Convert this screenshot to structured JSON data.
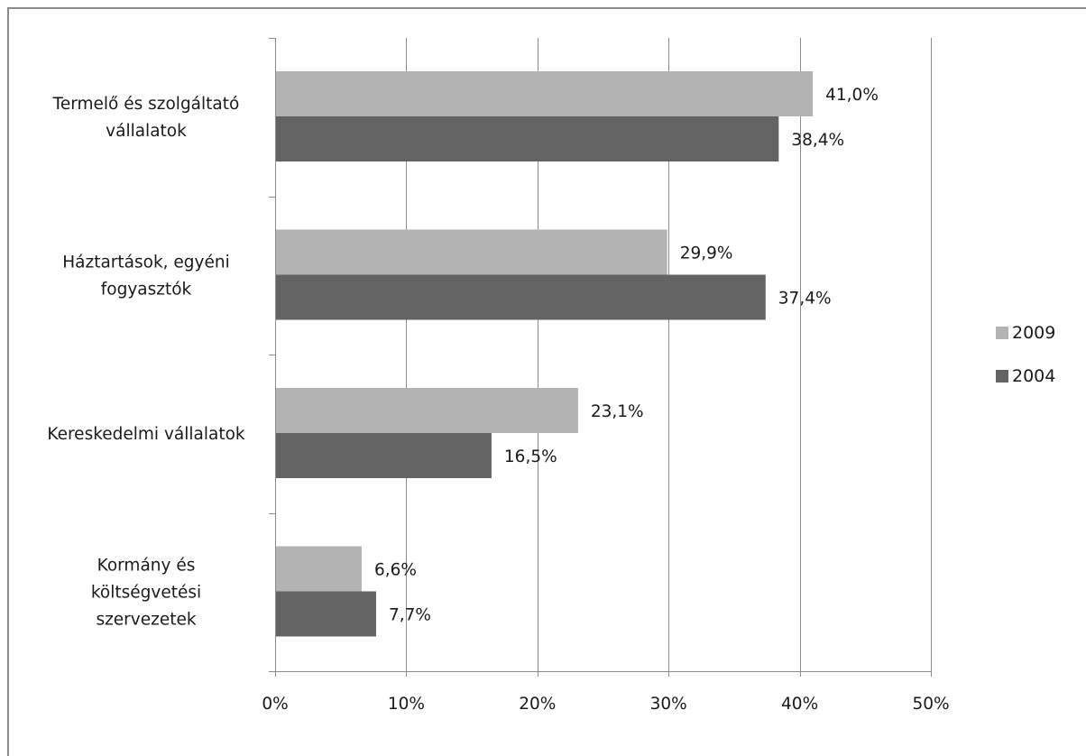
{
  "chart_data": {
    "type": "bar",
    "orientation": "horizontal",
    "categories": [
      [
        "Termelő és szolgáltató",
        "vállalatok"
      ],
      [
        "Háztartások, egyéni",
        "fogyasztók"
      ],
      [
        "Kereskedelmi vállalatok"
      ],
      [
        "Kormány és",
        "költségvetési",
        "szervezetek"
      ]
    ],
    "series": [
      {
        "name": "2009",
        "color": "#b3b3b3",
        "values": [
          41.0,
          29.9,
          23.1,
          6.6
        ],
        "labels": [
          "41,0%",
          "29,9%",
          "23,1%",
          "6,6%"
        ]
      },
      {
        "name": "2004",
        "color": "#636363",
        "values": [
          38.4,
          37.4,
          16.5,
          7.7
        ],
        "labels": [
          "38,4%",
          "37,4%",
          "16,5%",
          "7,7%"
        ]
      }
    ],
    "xlim": [
      0,
      50
    ],
    "xticks": [
      0,
      10,
      20,
      30,
      40,
      50
    ],
    "xtick_labels": [
      "0%",
      "10%",
      "20%",
      "30%",
      "40%",
      "50%"
    ],
    "grid": "vertical",
    "legend_position": "right",
    "gridline_color": "#8c8c8c",
    "axis_color": "#8c8c8c"
  }
}
